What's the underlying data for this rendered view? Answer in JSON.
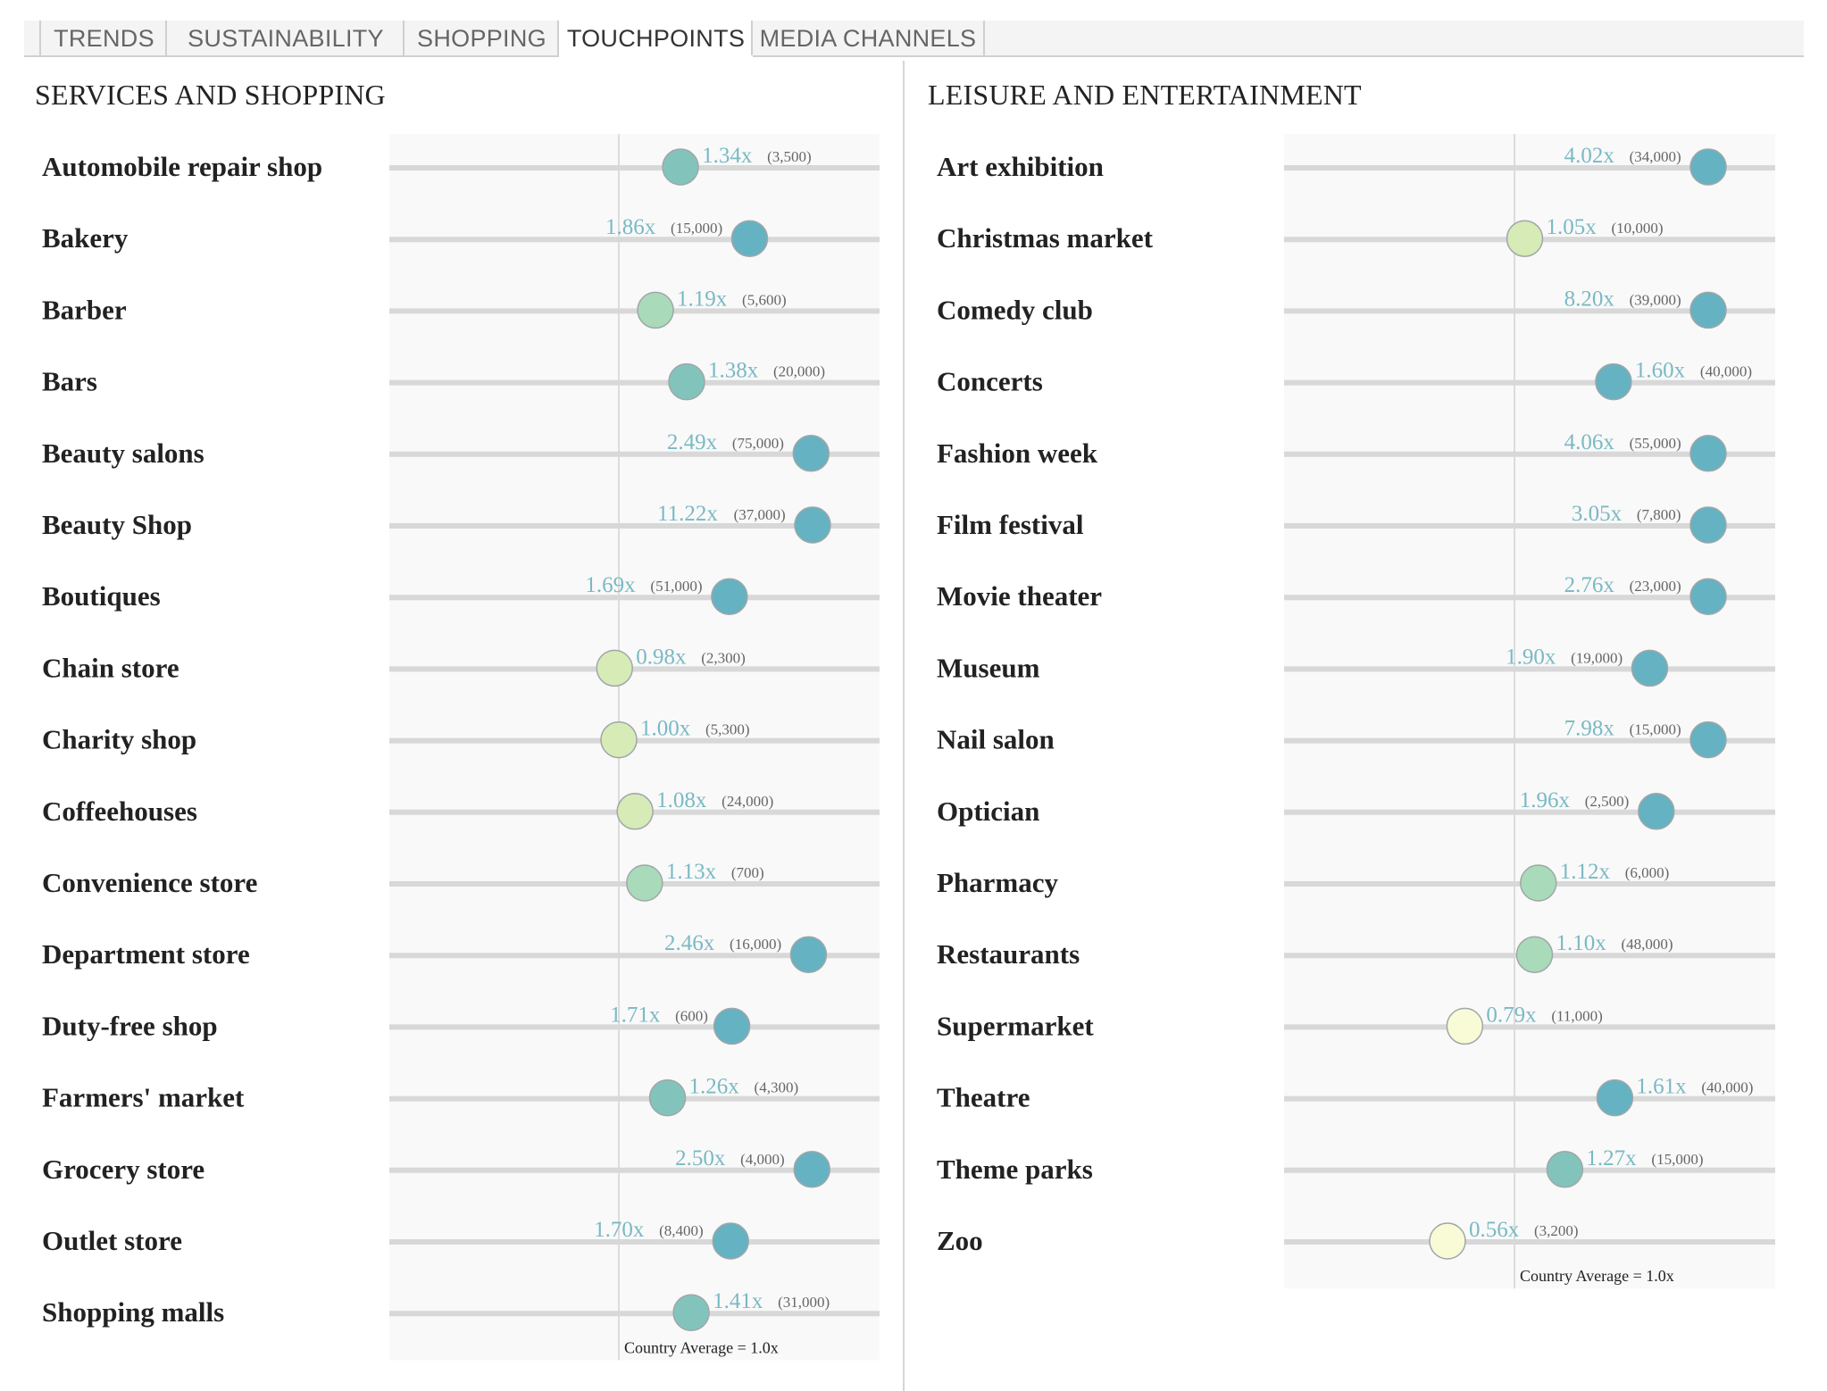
{
  "tabs": [
    {
      "label": "TRENDS",
      "active": false
    },
    {
      "label": "SUSTAINABILITY",
      "active": false
    },
    {
      "label": "SHOPPING",
      "active": false
    },
    {
      "label": "TOUCHPOINTS",
      "active": true
    },
    {
      "label": "MEDIA CHANNELS",
      "active": false
    }
  ],
  "colors": {
    "value_text": "#7ab9c4",
    "track": "#d8d8d8",
    "plot_bg": "#f9f9f9",
    "avg_line": "#dcdcdc",
    "dot_high": "#65b2c2",
    "dot_mid_high": "#82c4bb",
    "dot_mid": "#a9dab9",
    "dot_low": "#d6ebb6",
    "dot_lowest": "#f8fbd6",
    "dot_stroke": "#9fa7a9"
  },
  "chart_data": [
    {
      "type": "dot-scale",
      "title": "SERVICES AND SHOPPING",
      "reference_label": "Country Average = 1.0x",
      "reference_value": 1.0,
      "rows": [
        {
          "label": "Automobile repair shop",
          "value": 1.34,
          "value_text": "1.34x",
          "count_text": "(3,500)"
        },
        {
          "label": "Bakery",
          "value": 1.86,
          "value_text": "1.86x",
          "count_text": "(15,000)"
        },
        {
          "label": "Barber",
          "value": 1.19,
          "value_text": "1.19x",
          "count_text": "(5,600)"
        },
        {
          "label": "Bars",
          "value": 1.38,
          "value_text": "1.38x",
          "count_text": "(20,000)"
        },
        {
          "label": "Beauty salons",
          "value": 2.49,
          "value_text": "2.49x",
          "count_text": "(75,000)"
        },
        {
          "label": "Beauty Shop",
          "value": 11.22,
          "value_text": "11.22x",
          "count_text": "(37,000)"
        },
        {
          "label": "Boutiques",
          "value": 1.69,
          "value_text": "1.69x",
          "count_text": "(51,000)"
        },
        {
          "label": "Chain store",
          "value": 0.98,
          "value_text": "0.98x",
          "count_text": "(2,300)"
        },
        {
          "label": "Charity shop",
          "value": 1.0,
          "value_text": "1.00x",
          "count_text": "(5,300)"
        },
        {
          "label": "Coffeehouses",
          "value": 1.08,
          "value_text": "1.08x",
          "count_text": "(24,000)"
        },
        {
          "label": "Convenience store",
          "value": 1.13,
          "value_text": "1.13x",
          "count_text": "(700)"
        },
        {
          "label": "Department store",
          "value": 2.46,
          "value_text": "2.46x",
          "count_text": "(16,000)"
        },
        {
          "label": "Duty-free shop",
          "value": 1.71,
          "value_text": "1.71x",
          "count_text": "(600)"
        },
        {
          "label": "Farmers' market",
          "value": 1.26,
          "value_text": "1.26x",
          "count_text": "(4,300)"
        },
        {
          "label": "Grocery store",
          "value": 2.5,
          "value_text": "2.50x",
          "count_text": "(4,000)"
        },
        {
          "label": "Outlet store",
          "value": 1.7,
          "value_text": "1.70x",
          "count_text": "(8,400)"
        },
        {
          "label": "Shopping malls",
          "value": 1.41,
          "value_text": "1.41x",
          "count_text": "(31,000)"
        }
      ]
    },
    {
      "type": "dot-scale",
      "title": "LEISURE AND ENTERTAINMENT",
      "reference_label": "Country Average = 1.0x",
      "reference_value": 1.0,
      "rows": [
        {
          "label": "Art exhibition",
          "value": 4.02,
          "value_text": "4.02x",
          "count_text": "(34,000)"
        },
        {
          "label": "Christmas market",
          "value": 1.05,
          "value_text": "1.05x",
          "count_text": "(10,000)"
        },
        {
          "label": "Comedy club",
          "value": 8.2,
          "value_text": "8.20x",
          "count_text": "(39,000)"
        },
        {
          "label": "Concerts",
          "value": 1.6,
          "value_text": "1.60x",
          "count_text": "(40,000)"
        },
        {
          "label": "Fashion week",
          "value": 4.06,
          "value_text": "4.06x",
          "count_text": "(55,000)"
        },
        {
          "label": "Film festival",
          "value": 3.05,
          "value_text": "3.05x",
          "count_text": "(7,800)"
        },
        {
          "label": "Movie theater",
          "value": 2.76,
          "value_text": "2.76x",
          "count_text": "(23,000)"
        },
        {
          "label": "Museum",
          "value": 1.9,
          "value_text": "1.90x",
          "count_text": "(19,000)"
        },
        {
          "label": "Nail salon",
          "value": 7.98,
          "value_text": "7.98x",
          "count_text": "(15,000)"
        },
        {
          "label": "Optician",
          "value": 1.96,
          "value_text": "1.96x",
          "count_text": "(2,500)"
        },
        {
          "label": "Pharmacy",
          "value": 1.12,
          "value_text": "1.12x",
          "count_text": "(6,000)"
        },
        {
          "label": "Restaurants",
          "value": 1.1,
          "value_text": "1.10x",
          "count_text": "(48,000)"
        },
        {
          "label": "Supermarket",
          "value": 0.79,
          "value_text": "0.79x",
          "count_text": "(11,000)"
        },
        {
          "label": "Theatre",
          "value": 1.61,
          "value_text": "1.61x",
          "count_text": "(40,000)"
        },
        {
          "label": "Theme parks",
          "value": 1.27,
          "value_text": "1.27x",
          "count_text": "(15,000)"
        },
        {
          "label": "Zoo",
          "value": 0.56,
          "value_text": "0.56x",
          "count_text": "(3,200)"
        }
      ]
    }
  ]
}
